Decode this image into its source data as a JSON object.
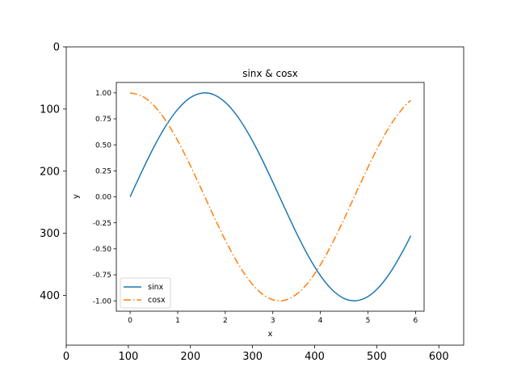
{
  "chart_data": [
    {
      "type": "image",
      "title": "",
      "xlabel": "",
      "ylabel": "",
      "xlim": [
        0,
        640
      ],
      "ylim": [
        480,
        0
      ],
      "xticks": [
        0,
        100,
        200,
        300,
        400,
        500,
        600
      ],
      "yticks": [
        0,
        100,
        200,
        300,
        400
      ],
      "grid": false
    },
    {
      "type": "line",
      "title": "sinx & cosx",
      "xlabel": "x",
      "ylabel": "y",
      "xlim": [
        -0.29,
        6.18
      ],
      "ylim": [
        -1.1,
        1.1
      ],
      "xticks": [
        0,
        1,
        2,
        3,
        4,
        5,
        6
      ],
      "yticks": [
        -1.0,
        -0.75,
        -0.5,
        -0.25,
        0.0,
        0.25,
        0.5,
        0.75,
        1.0
      ],
      "grid": false,
      "legend": "lower-left",
      "series": [
        {
          "name": "sinx",
          "color": "#1f77b4",
          "style": "solid",
          "x": [
            0.0,
            0.25,
            0.5,
            0.75,
            1.0,
            1.25,
            1.5,
            1.75,
            2.0,
            2.25,
            2.5,
            2.75,
            3.0,
            3.25,
            3.5,
            3.75,
            4.0,
            4.25,
            4.5,
            4.75,
            5.0,
            5.25,
            5.5,
            5.75,
            5.9
          ],
          "y": [
            0.0,
            0.247,
            0.479,
            0.682,
            0.841,
            0.949,
            0.997,
            0.984,
            0.909,
            0.778,
            0.598,
            0.382,
            0.141,
            -0.108,
            -0.351,
            -0.572,
            -0.757,
            -0.895,
            -0.978,
            -0.999,
            -0.959,
            -0.859,
            -0.706,
            -0.508,
            -0.374
          ]
        },
        {
          "name": "cosx",
          "color": "#ff7f0e",
          "style": "dashdot",
          "x": [
            0.0,
            0.25,
            0.5,
            0.75,
            1.0,
            1.25,
            1.5,
            1.75,
            2.0,
            2.25,
            2.5,
            2.75,
            3.0,
            3.25,
            3.5,
            3.75,
            4.0,
            4.25,
            4.5,
            4.75,
            5.0,
            5.25,
            5.5,
            5.75,
            5.9
          ],
          "y": [
            1.0,
            0.969,
            0.878,
            0.732,
            0.54,
            0.315,
            0.071,
            -0.178,
            -0.416,
            -0.628,
            -0.801,
            -0.924,
            -0.99,
            -0.994,
            -0.936,
            -0.82,
            -0.654,
            -0.446,
            -0.211,
            0.038,
            0.284,
            0.512,
            0.709,
            0.861,
            0.927
          ]
        }
      ]
    }
  ]
}
